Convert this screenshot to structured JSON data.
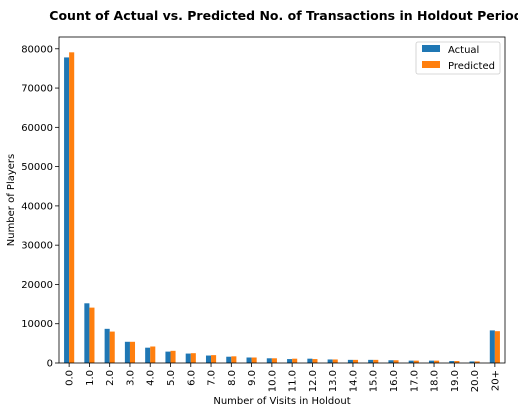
{
  "chart_data": {
    "type": "bar",
    "title": "Count of Actual vs. Predicted No. of Transactions in Holdout Period",
    "xlabel": "Number of Visits in Holdout",
    "ylabel": "Number of Players",
    "ylim": [
      0,
      83000
    ],
    "yticks": [
      0,
      10000,
      20000,
      30000,
      40000,
      50000,
      60000,
      70000,
      80000
    ],
    "ytick_labels": [
      "0",
      "10000",
      "20000",
      "30000",
      "40000",
      "50000",
      "60000",
      "70000",
      "80000"
    ],
    "categories": [
      "0.0",
      "1.0",
      "2.0",
      "3.0",
      "4.0",
      "5.0",
      "6.0",
      "7.0",
      "8.0",
      "9.0",
      "10.0",
      "11.0",
      "12.0",
      "13.0",
      "14.0",
      "15.0",
      "16.0",
      "17.0",
      "18.0",
      "19.0",
      "20.0",
      "20+"
    ],
    "series": [
      {
        "name": "Actual",
        "color": "#1f77b4",
        "values": [
          77800,
          15200,
          8700,
          5400,
          3900,
          2900,
          2400,
          1900,
          1600,
          1400,
          1200,
          1000,
          1100,
          900,
          800,
          800,
          700,
          600,
          600,
          500,
          400,
          8300
        ]
      },
      {
        "name": "Predicted",
        "color": "#ff7f0e",
        "values": [
          79100,
          14100,
          8000,
          5400,
          4200,
          3100,
          2500,
          2000,
          1700,
          1400,
          1200,
          1100,
          1000,
          900,
          800,
          800,
          700,
          600,
          600,
          500,
          400,
          8100
        ]
      }
    ],
    "legend_position": "top-right",
    "grid": false
  }
}
